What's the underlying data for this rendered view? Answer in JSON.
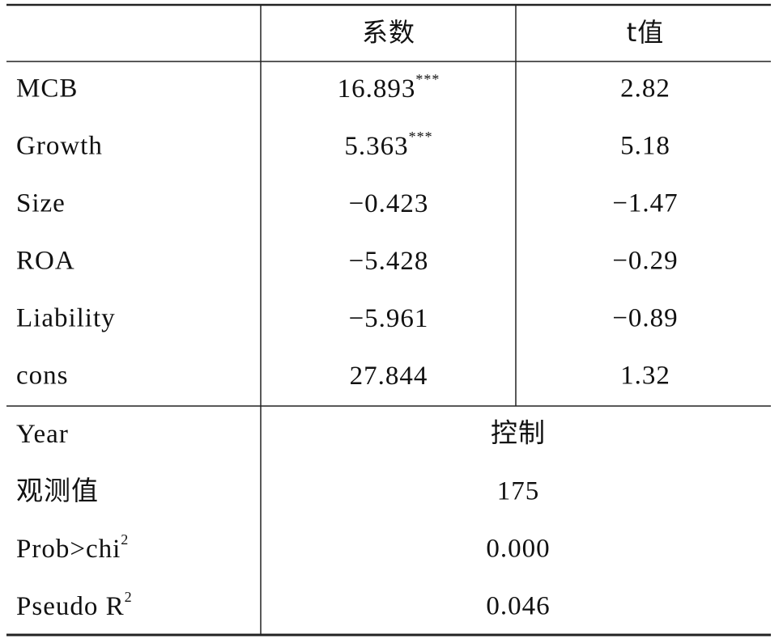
{
  "table": {
    "header": [
      "系数",
      "t值"
    ],
    "rows": [
      {
        "label": "MCB",
        "coef": "16.893",
        "stars": "***",
        "t": "2.82"
      },
      {
        "label": "Growth",
        "coef": "5.363",
        "stars": "***",
        "t": "5.18"
      },
      {
        "label": "Size",
        "coef": "−0.423",
        "t": "−1.47"
      },
      {
        "label": "ROA",
        "coef": "−5.428",
        "t": "−0.29"
      },
      {
        "label": "Liability",
        "coef": "−5.961",
        "t": "−0.89"
      },
      {
        "label": "cons",
        "coef": "27.844",
        "t": "1.32"
      }
    ],
    "footer": [
      {
        "label": "Year",
        "value": "控制"
      },
      {
        "label": "观测值",
        "value": "175"
      },
      {
        "label": "Prob>chi",
        "sup": "2",
        "value": "0.000"
      },
      {
        "label": "Pseudo R",
        "sup": "2",
        "value": "0.046"
      }
    ]
  }
}
